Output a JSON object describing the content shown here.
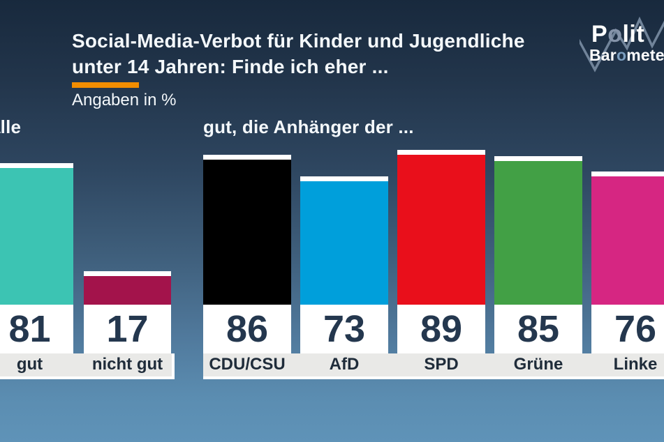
{
  "header": {
    "title_lines": [
      "Social-Media-Verbot für Kinder und Jugendliche",
      "unter 14 Jahren: Finde ich eher ..."
    ],
    "subtitle": "Angaben in %",
    "accent_color": "#f28d00"
  },
  "logo": {
    "word1_part1": "P",
    "word1_o": "o",
    "word1_part2": "lit",
    "word2_part1": "Bar",
    "word2_o": "o",
    "word2_part2": "meter"
  },
  "chart_data": {
    "type": "bar",
    "title": "Social-Media-Verbot für Kinder und Jugendliche unter 14 Jahren: Finde ich eher ...",
    "unit": "%",
    "ylim": [
      0,
      100
    ],
    "value_labels_shown": true,
    "groups": [
      {
        "label": "alle",
        "bars": [
          {
            "label": "gut",
            "value": 81,
            "color": "#3cc4b3"
          },
          {
            "label": "nicht gut",
            "value": 17,
            "color": "#a3134b"
          }
        ]
      },
      {
        "label": "gut, die Anhänger der ...",
        "bars": [
          {
            "label": "CDU/CSU",
            "value": 86,
            "color": "#000000"
          },
          {
            "label": "AfD",
            "value": 73,
            "color": "#009fdb"
          },
          {
            "label": "SPD",
            "value": 89,
            "color": "#e90f1b"
          },
          {
            "label": "Grüne",
            "value": 85,
            "color": "#42a045"
          },
          {
            "label": "Linke",
            "value": 76,
            "color": "#d62682"
          }
        ]
      }
    ]
  }
}
